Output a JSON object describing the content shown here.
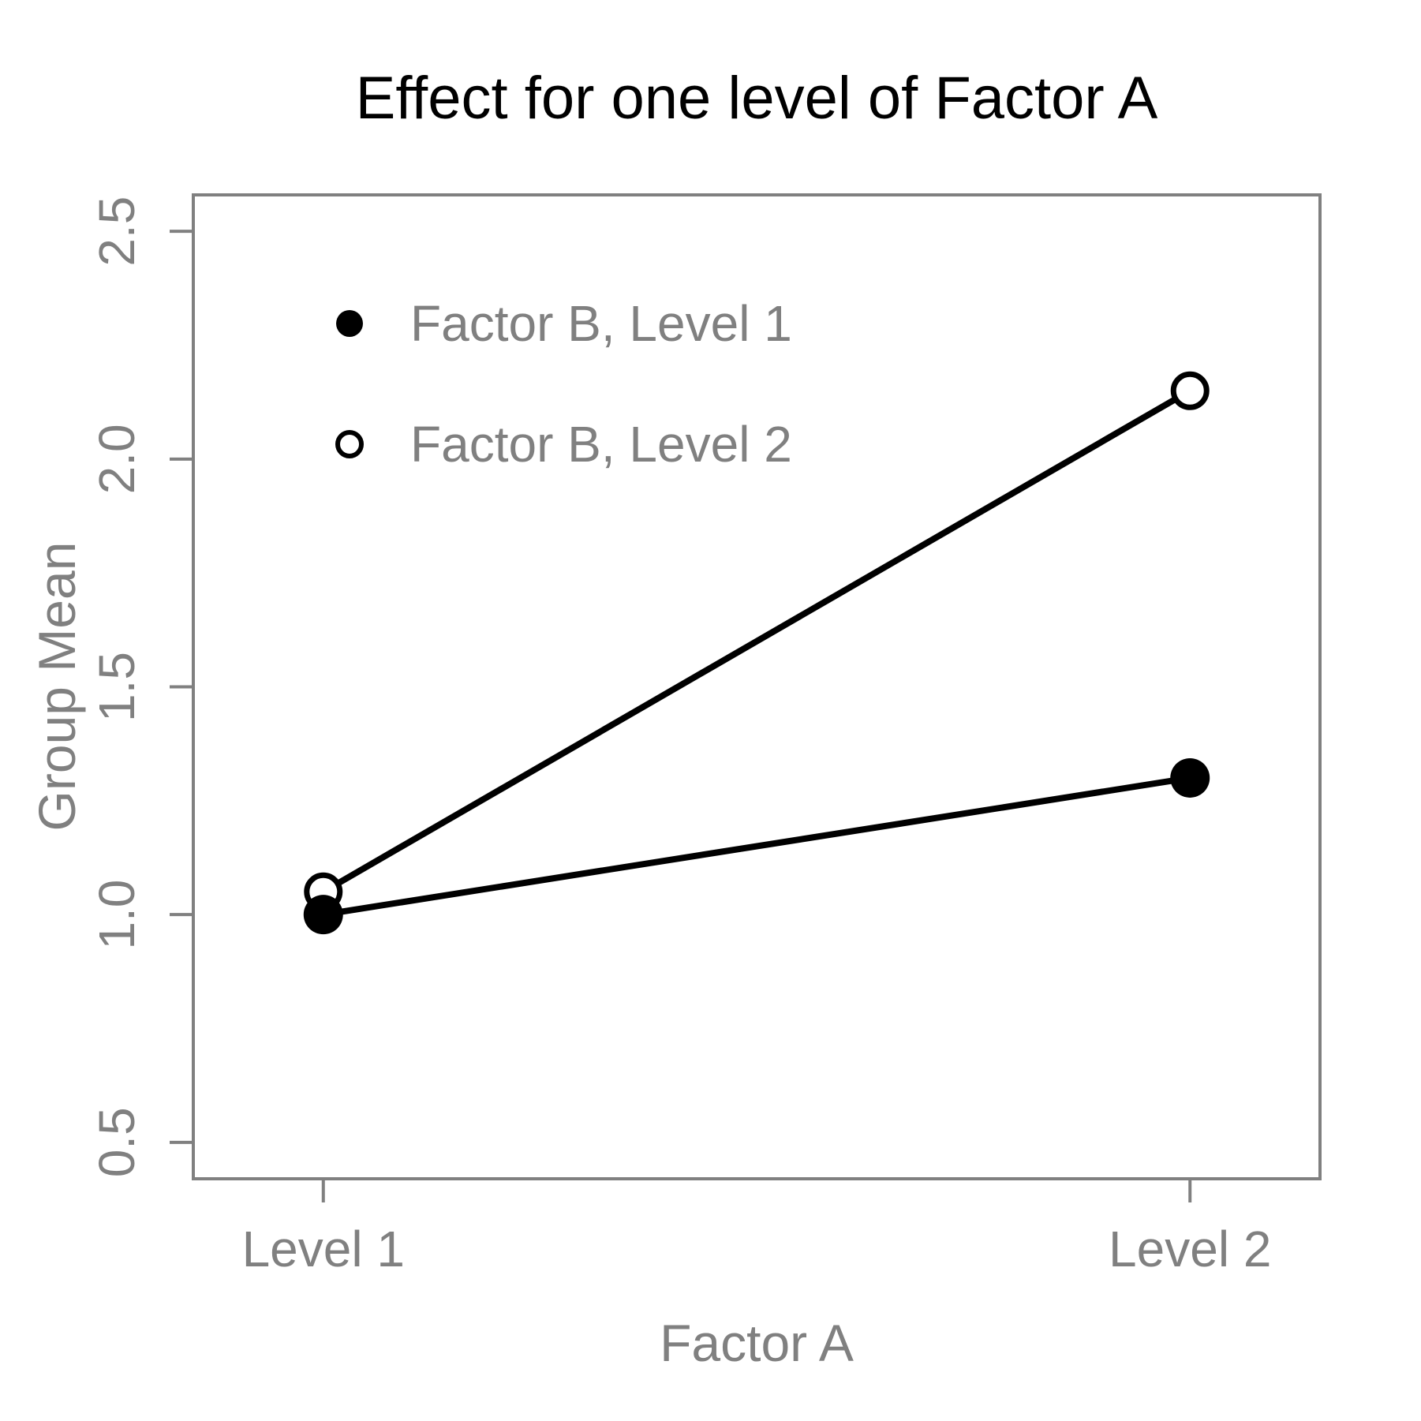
{
  "chart_data": {
    "type": "line",
    "title": "Effect for one level of Factor A",
    "xlabel": "Factor A",
    "ylabel": "Group Mean",
    "categories": [
      "Level 1",
      "Level 2"
    ],
    "x_positions": [
      1,
      2
    ],
    "series": [
      {
        "name": "Factor B, Level 1",
        "marker": "filled-circle",
        "color": "#000000",
        "values": [
          1.0,
          1.3
        ]
      },
      {
        "name": "Factor B, Level 2",
        "marker": "open-circle",
        "color": "#000000",
        "values": [
          1.05,
          2.15
        ]
      }
    ],
    "yticks": [
      "0.5",
      "1.0",
      "1.5",
      "2.0",
      "2.5"
    ],
    "ylim": [
      0.42,
      2.58
    ],
    "xlim": [
      0.85,
      2.15
    ],
    "grid": false,
    "legend": {
      "position": "top-left-inside"
    },
    "axis_color": "#808080",
    "data_color": "#000000",
    "background": "#ffffff"
  }
}
